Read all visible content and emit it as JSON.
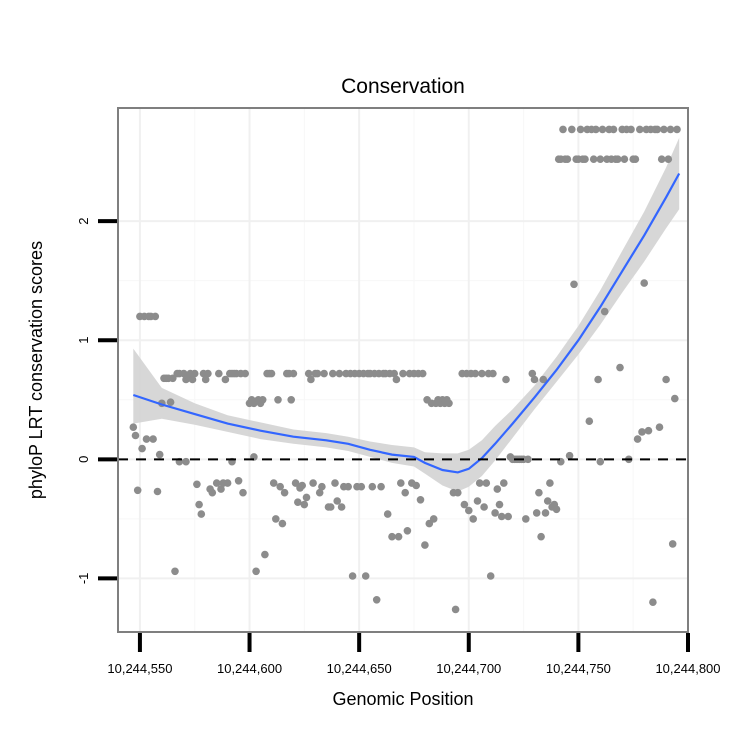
{
  "chart_data": {
    "type": "scatter",
    "title": "Conservation",
    "xlabel": "Genomic Position",
    "ylabel": "phyloP LRT conservation scores",
    "xlim": [
      10244540,
      10244800
    ],
    "ylim": [
      -1.45,
      2.95
    ],
    "x_ticks": [
      10244550,
      10244600,
      10244650,
      10244700,
      10244750,
      10244800
    ],
    "x_tick_labels": [
      "10,244,550",
      "10,244,600",
      "10,244,650",
      "10,244,700",
      "10,244,750",
      "10,244,800"
    ],
    "y_ticks": [
      -1,
      0,
      1,
      2
    ],
    "y_tick_labels": [
      "-1",
      "0",
      "1",
      "2"
    ],
    "reference_line": {
      "y": 0,
      "style": "dashed"
    },
    "smooth": {
      "method": "loess",
      "color": "#3366ff",
      "band_color": "#d3d3d3",
      "x": [
        10244547,
        10244560,
        10244575,
        10244590,
        10244605,
        10244620,
        10244635,
        10244645,
        10244655,
        10244665,
        10244675,
        10244680,
        10244688,
        10244695,
        10244700,
        10244706,
        10244712,
        10244720,
        10244730,
        10244740,
        10244750,
        10244760,
        10244770,
        10244780,
        10244790,
        10244796
      ],
      "y": [
        0.54,
        0.46,
        0.38,
        0.3,
        0.24,
        0.19,
        0.16,
        0.13,
        0.08,
        0.04,
        0.02,
        -0.03,
        -0.09,
        -0.11,
        -0.08,
        0.01,
        0.13,
        0.3,
        0.52,
        0.75,
        1.0,
        1.28,
        1.58,
        1.88,
        2.2,
        2.4
      ],
      "lower": [
        0.3,
        0.34,
        0.29,
        0.23,
        0.17,
        0.13,
        0.1,
        0.07,
        0.02,
        -0.03,
        -0.06,
        -0.12,
        -0.22,
        -0.27,
        -0.23,
        -0.14,
        -0.01,
        0.18,
        0.42,
        0.65,
        0.88,
        1.13,
        1.4,
        1.66,
        1.94,
        2.1
      ],
      "upper": [
        0.93,
        0.6,
        0.47,
        0.37,
        0.31,
        0.25,
        0.22,
        0.19,
        0.15,
        0.12,
        0.1,
        0.06,
        0.05,
        0.05,
        0.08,
        0.16,
        0.28,
        0.42,
        0.62,
        0.86,
        1.12,
        1.42,
        1.75,
        2.08,
        2.45,
        2.7
      ]
    },
    "points": [
      [
        10244547,
        0.27
      ],
      [
        10244548,
        0.2
      ],
      [
        10244549,
        -0.26
      ],
      [
        10244550,
        1.2
      ],
      [
        10244551,
        0.09
      ],
      [
        10244552,
        1.2
      ],
      [
        10244553,
        0.17
      ],
      [
        10244554,
        1.2
      ],
      [
        10244555,
        1.2
      ],
      [
        10244556,
        0.17
      ],
      [
        10244557,
        1.2
      ],
      [
        10244558,
        -0.27
      ],
      [
        10244559,
        0.04
      ],
      [
        10244560,
        0.47
      ],
      [
        10244561,
        0.68
      ],
      [
        10244562,
        0.68
      ],
      [
        10244563,
        0.68
      ],
      [
        10244564,
        0.48
      ],
      [
        10244565,
        0.68
      ],
      [
        10244566,
        -0.94
      ],
      [
        10244567,
        0.72
      ],
      [
        10244568,
        0.72
      ],
      [
        10244570,
        0.72
      ],
      [
        10244571,
        0.67
      ],
      [
        10244572,
        0.7
      ],
      [
        10244573,
        0.72
      ],
      [
        10244574,
        0.67
      ],
      [
        10244575,
        0.72
      ],
      [
        10244576,
        -0.21
      ],
      [
        10244577,
        -0.38
      ],
      [
        10244578,
        -0.46
      ],
      [
        10244579,
        0.72
      ],
      [
        10244580,
        0.67
      ],
      [
        10244581,
        0.72
      ],
      [
        10244582,
        -0.25
      ],
      [
        10244583,
        -0.28
      ],
      [
        10244585,
        -0.2
      ],
      [
        10244586,
        0.72
      ],
      [
        10244587,
        -0.25
      ],
      [
        10244588,
        -0.2
      ],
      [
        10244589,
        0.67
      ],
      [
        10244590,
        -0.2
      ],
      [
        10244591,
        0.72
      ],
      [
        10244592,
        0.72
      ],
      [
        10244593,
        0.72
      ],
      [
        10244594,
        0.72
      ],
      [
        10244595,
        -0.18
      ],
      [
        10244596,
        0.72
      ],
      [
        10244597,
        -0.28
      ],
      [
        10244598,
        0.72
      ],
      [
        10244600,
        0.47
      ],
      [
        10244601,
        0.5
      ],
      [
        10244602,
        0.47
      ],
      [
        10244603,
        -0.94
      ],
      [
        10244604,
        0.5
      ],
      [
        10244605,
        0.47
      ],
      [
        10244606,
        0.5
      ],
      [
        10244607,
        -0.8
      ],
      [
        10244608,
        0.72
      ],
      [
        10244609,
        0.72
      ],
      [
        10244610,
        0.72
      ],
      [
        10244611,
        -0.2
      ],
      [
        10244612,
        -0.5
      ],
      [
        10244613,
        0.5
      ],
      [
        10244614,
        -0.23
      ],
      [
        10244615,
        -0.54
      ],
      [
        10244616,
        -0.28
      ],
      [
        10244617,
        0.72
      ],
      [
        10244618,
        0.72
      ],
      [
        10244619,
        0.5
      ],
      [
        10244620,
        0.72
      ],
      [
        10244621,
        -0.2
      ],
      [
        10244622,
        -0.36
      ],
      [
        10244623,
        -0.24
      ],
      [
        10244624,
        -0.22
      ],
      [
        10244625,
        -0.38
      ],
      [
        10244626,
        -0.32
      ],
      [
        10244627,
        0.72
      ],
      [
        10244628,
        0.67
      ],
      [
        10244629,
        -0.2
      ],
      [
        10244630,
        0.72
      ],
      [
        10244631,
        0.72
      ],
      [
        10244632,
        -0.28
      ],
      [
        10244633,
        -0.23
      ],
      [
        10244634,
        0.72
      ],
      [
        10244636,
        -0.4
      ],
      [
        10244637,
        -0.4
      ],
      [
        10244638,
        0.72
      ],
      [
        10244639,
        -0.2
      ],
      [
        10244640,
        -0.35
      ],
      [
        10244641,
        0.72
      ],
      [
        10244642,
        -0.4
      ],
      [
        10244643,
        -0.23
      ],
      [
        10244644,
        0.72
      ],
      [
        10244645,
        -0.23
      ],
      [
        10244646,
        0.72
      ],
      [
        10244647,
        -0.98
      ],
      [
        10244648,
        0.72
      ],
      [
        10244649,
        -0.23
      ],
      [
        10244650,
        0.72
      ],
      [
        10244651,
        -0.23
      ],
      [
        10244652,
        0.72
      ],
      [
        10244653,
        -0.98
      ],
      [
        10244654,
        0.72
      ],
      [
        10244655,
        0.72
      ],
      [
        10244656,
        -0.23
      ],
      [
        10244657,
        0.72
      ],
      [
        10244658,
        -1.18
      ],
      [
        10244659,
        0.72
      ],
      [
        10244660,
        -0.23
      ],
      [
        10244661,
        0.72
      ],
      [
        10244662,
        0.72
      ],
      [
        10244663,
        -0.46
      ],
      [
        10244664,
        0.72
      ],
      [
        10244665,
        -0.65
      ],
      [
        10244666,
        0.72
      ],
      [
        10244667,
        0.67
      ],
      [
        10244668,
        -0.65
      ],
      [
        10244669,
        -0.2
      ],
      [
        10244670,
        0.72
      ],
      [
        10244671,
        -0.28
      ],
      [
        10244672,
        -0.6
      ],
      [
        10244673,
        0.72
      ],
      [
        10244674,
        -0.2
      ],
      [
        10244675,
        0.72
      ],
      [
        10244676,
        -0.22
      ],
      [
        10244677,
        0.72
      ],
      [
        10244678,
        -0.34
      ],
      [
        10244679,
        0.72
      ],
      [
        10244680,
        -0.72
      ],
      [
        10244681,
        0.5
      ],
      [
        10244682,
        -0.54
      ],
      [
        10244683,
        0.47
      ],
      [
        10244684,
        -0.5
      ],
      [
        10244685,
        0.47
      ],
      [
        10244686,
        0.5
      ],
      [
        10244687,
        0.47
      ],
      [
        10244688,
        0.5
      ],
      [
        10244689,
        0.47
      ],
      [
        10244690,
        0.5
      ],
      [
        10244691,
        0.47
      ],
      [
        10244693,
        -0.28
      ],
      [
        10244694,
        -1.26
      ],
      [
        10244695,
        -0.28
      ],
      [
        10244697,
        0.72
      ],
      [
        10244698,
        -0.38
      ],
      [
        10244699,
        0.72
      ],
      [
        10244700,
        -0.43
      ],
      [
        10244701,
        0.72
      ],
      [
        10244702,
        -0.5
      ],
      [
        10244703,
        0.72
      ],
      [
        10244704,
        -0.35
      ],
      [
        10244705,
        -0.2
      ],
      [
        10244706,
        0.72
      ],
      [
        10244707,
        -0.4
      ],
      [
        10244708,
        -0.2
      ],
      [
        10244709,
        0.72
      ],
      [
        10244710,
        -0.98
      ],
      [
        10244711,
        0.72
      ],
      [
        10244712,
        -0.45
      ],
      [
        10244713,
        -0.25
      ],
      [
        10244714,
        -0.38
      ],
      [
        10244715,
        -0.48
      ],
      [
        10244716,
        -0.2
      ],
      [
        10244717,
        0.67
      ],
      [
        10244718,
        -0.48
      ],
      [
        10244720,
        0.0
      ],
      [
        10244721,
        0.0
      ],
      [
        10244722,
        0.0
      ],
      [
        10244723,
        0.0
      ],
      [
        10244724,
        0.0
      ],
      [
        10244725,
        0.0
      ],
      [
        10244726,
        -0.5
      ],
      [
        10244727,
        0.0
      ],
      [
        10244729,
        0.72
      ],
      [
        10244730,
        0.67
      ],
      [
        10244731,
        -0.45
      ],
      [
        10244732,
        -0.28
      ],
      [
        10244733,
        -0.65
      ],
      [
        10244734,
        0.67
      ],
      [
        10244735,
        -0.45
      ],
      [
        10244736,
        -0.35
      ],
      [
        10244737,
        -0.2
      ],
      [
        10244738,
        -0.4
      ],
      [
        10244739,
        -0.38
      ],
      [
        10244740,
        -0.42
      ],
      [
        10244741,
        2.52
      ],
      [
        10244742,
        2.52
      ],
      [
        10244743,
        2.77
      ],
      [
        10244744,
        2.52
      ],
      [
        10244745,
        2.52
      ],
      [
        10244746,
        0.03
      ],
      [
        10244747,
        2.77
      ],
      [
        10244748,
        1.47
      ],
      [
        10244749,
        2.52
      ],
      [
        10244750,
        2.52
      ],
      [
        10244751,
        2.77
      ],
      [
        10244752,
        2.52
      ],
      [
        10244753,
        2.52
      ],
      [
        10244754,
        2.77
      ],
      [
        10244755,
        0.32
      ],
      [
        10244756,
        2.77
      ],
      [
        10244757,
        2.52
      ],
      [
        10244758,
        2.77
      ],
      [
        10244759,
        0.67
      ],
      [
        10244760,
        2.52
      ],
      [
        10244761,
        2.77
      ],
      [
        10244762,
        1.24
      ],
      [
        10244763,
        2.52
      ],
      [
        10244764,
        2.77
      ],
      [
        10244765,
        2.52
      ],
      [
        10244766,
        2.77
      ],
      [
        10244767,
        2.52
      ],
      [
        10244768,
        2.52
      ],
      [
        10244769,
        0.77
      ],
      [
        10244770,
        2.77
      ],
      [
        10244771,
        2.52
      ],
      [
        10244772,
        2.77
      ],
      [
        10244773,
        0.0
      ],
      [
        10244774,
        2.77
      ],
      [
        10244775,
        2.52
      ],
      [
        10244776,
        2.52
      ],
      [
        10244777,
        0.17
      ],
      [
        10244778,
        2.77
      ],
      [
        10244779,
        0.23
      ],
      [
        10244780,
        1.48
      ],
      [
        10244781,
        2.77
      ],
      [
        10244782,
        0.24
      ],
      [
        10244783,
        2.77
      ],
      [
        10244784,
        -1.2
      ],
      [
        10244785,
        2.77
      ],
      [
        10244786,
        2.77
      ],
      [
        10244787,
        0.27
      ],
      [
        10244788,
        2.52
      ],
      [
        10244789,
        2.77
      ],
      [
        10244790,
        0.67
      ],
      [
        10244791,
        2.52
      ],
      [
        10244792,
        2.77
      ],
      [
        10244793,
        -0.71
      ],
      [
        10244794,
        0.51
      ],
      [
        10244795,
        2.77
      ],
      [
        10244568,
        -0.02
      ],
      [
        10244571,
        -0.02
      ],
      [
        10244592,
        -0.02
      ],
      [
        10244602,
        0.02
      ],
      [
        10244719,
        0.02
      ],
      [
        10244760,
        -0.02
      ],
      [
        10244742,
        -0.02
      ]
    ]
  }
}
